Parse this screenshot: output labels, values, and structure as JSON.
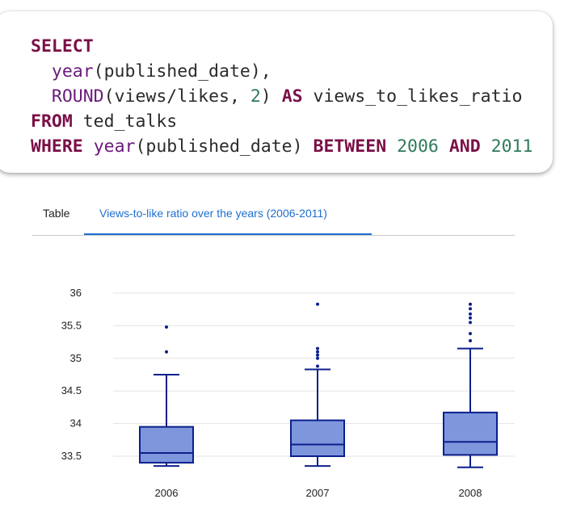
{
  "code": {
    "line1": [
      "SELECT"
    ],
    "line2": [
      "year",
      "(published_date),"
    ],
    "line3": [
      "ROUND",
      "(views/likes, ",
      "2",
      ") ",
      "AS",
      " views_to_likes_ratio"
    ],
    "line4": [
      "FROM",
      " ted_talks"
    ],
    "line5": [
      "WHERE",
      " ",
      "year",
      "(published_date) ",
      "BETWEEN",
      " ",
      "2006",
      " ",
      "AND",
      " ",
      "2011"
    ]
  },
  "tabs": [
    {
      "label": "Table",
      "active": false
    },
    {
      "label": "Views-to-like ratio over the years (2006-2011)",
      "active": true
    }
  ],
  "colors": {
    "box_fill": "#7e96dc",
    "box_stroke": "#0c1f8c",
    "grid": "#e3e3e3",
    "tab_active": "#1f6fcf"
  },
  "chart_data": {
    "type": "box",
    "title": "",
    "xlabel": "",
    "ylabel": "",
    "ylim": [
      33.3,
      36.1
    ],
    "y_ticks": [
      33.5,
      34,
      34.5,
      35,
      35.5,
      36
    ],
    "y_tick_labels": [
      "33.5",
      "34",
      "34.5",
      "35",
      "35.5",
      "36"
    ],
    "categories": [
      "2006",
      "2007",
      "2008"
    ],
    "boxes": [
      {
        "category": "2006",
        "min": 33.35,
        "q1": 33.4,
        "median": 33.55,
        "q3": 33.95,
        "max": 34.75,
        "outliers": [
          35.1,
          35.48
        ]
      },
      {
        "category": "2007",
        "min": 33.35,
        "q1": 33.5,
        "median": 33.68,
        "q3": 34.05,
        "max": 34.83,
        "outliers": [
          34.88,
          35.0,
          35.05,
          35.1,
          35.15,
          35.83
        ]
      },
      {
        "category": "2008",
        "min": 33.33,
        "q1": 33.52,
        "median": 33.72,
        "q3": 34.17,
        "max": 35.15,
        "outliers": [
          35.27,
          35.38,
          35.55,
          35.62,
          35.68,
          35.76,
          35.83
        ]
      }
    ],
    "grid": true
  }
}
